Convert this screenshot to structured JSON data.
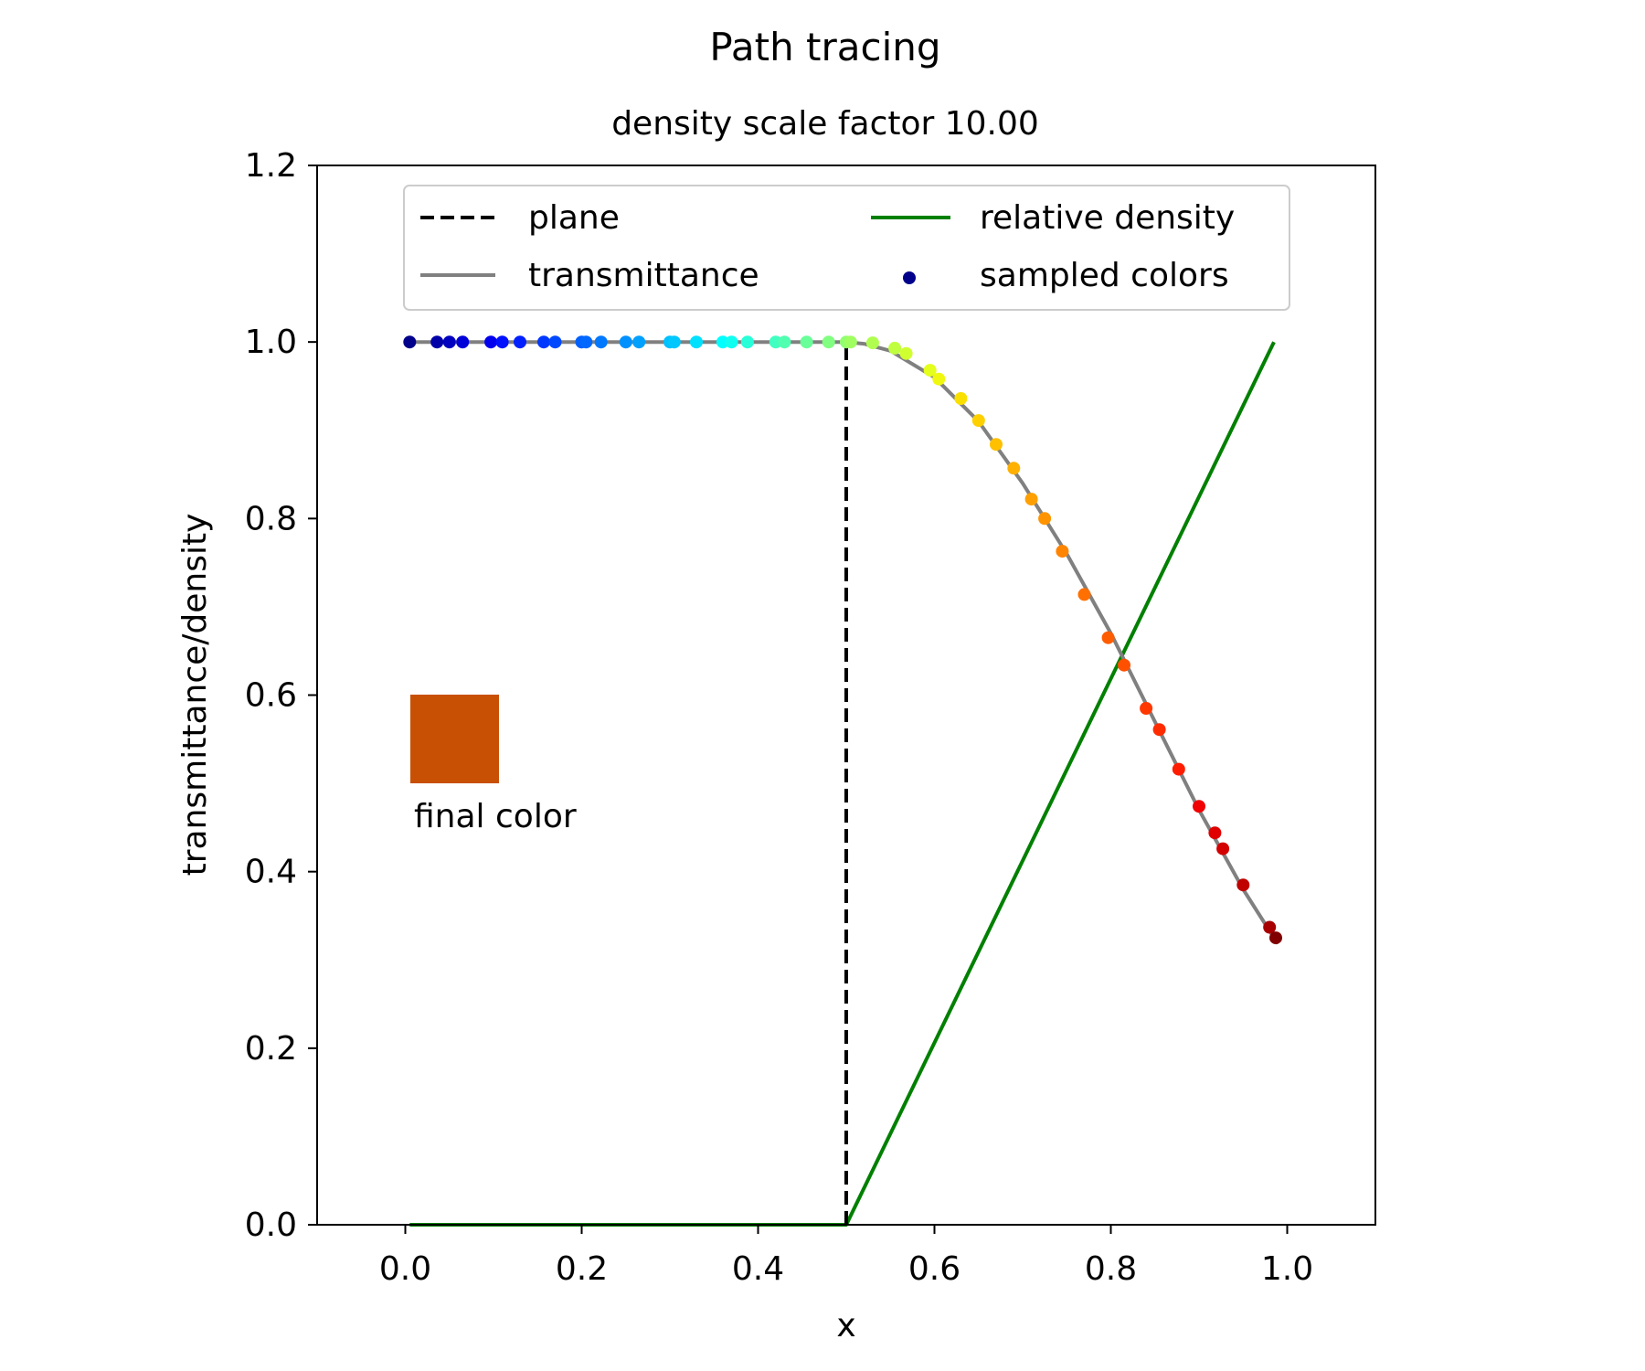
{
  "chart_data": {
    "type": "line",
    "title": "Path tracing",
    "subtitle": "density scale factor 10.00",
    "xlabel": "x",
    "ylabel": "transmittance/density",
    "xlim": [
      -0.1,
      1.1
    ],
    "ylim": [
      0.0,
      1.2
    ],
    "xticks": [
      0.0,
      0.2,
      0.4,
      0.6,
      0.8,
      1.0
    ],
    "xtick_labels": [
      "0.0",
      "0.2",
      "0.4",
      "0.6",
      "0.8",
      "1.0"
    ],
    "yticks": [
      0.0,
      0.2,
      0.4,
      0.6,
      0.8,
      1.0,
      1.2
    ],
    "ytick_labels": [
      "0.0",
      "0.2",
      "0.4",
      "0.6",
      "0.8",
      "1.0",
      "1.2"
    ],
    "grid": false,
    "legend": {
      "placement": "top-center",
      "columns": 2,
      "entries": [
        "plane",
        "transmittance",
        "relative density",
        "sampled colors"
      ]
    },
    "series": [
      {
        "name": "plane",
        "style": "dashed",
        "color": "#000000",
        "x": [
          0.5,
          0.5
        ],
        "y": [
          0.0,
          1.0
        ]
      },
      {
        "name": "transmittance",
        "style": "solid",
        "color": "#808080",
        "x": [
          0.005,
          0.5,
          0.52,
          0.55,
          0.6,
          0.65,
          0.7,
          0.75,
          0.8,
          0.85,
          0.9,
          0.95,
          0.985
        ],
        "y": [
          1.0,
          1.0,
          0.998,
          0.99,
          0.96,
          0.91,
          0.84,
          0.76,
          0.67,
          0.57,
          0.47,
          0.38,
          0.325
        ]
      },
      {
        "name": "relative density",
        "style": "solid",
        "color": "#008000",
        "x": [
          0.005,
          0.5,
          0.985
        ],
        "y": [
          0.0,
          0.0,
          1.0
        ]
      },
      {
        "name": "sampled colors",
        "style": "points",
        "color": "#00008b",
        "x": [
          0.005,
          0.036,
          0.05,
          0.065,
          0.097,
          0.11,
          0.13,
          0.157,
          0.17,
          0.2,
          0.205,
          0.222,
          0.25,
          0.265,
          0.3,
          0.305,
          0.33,
          0.36,
          0.37,
          0.388,
          0.42,
          0.43,
          0.455,
          0.48,
          0.5,
          0.505,
          0.53,
          0.555,
          0.568,
          0.595,
          0.605,
          0.63,
          0.65,
          0.67,
          0.69,
          0.71,
          0.725,
          0.745,
          0.77,
          0.797,
          0.815,
          0.84,
          0.855,
          0.877,
          0.9,
          0.918,
          0.927,
          0.95,
          0.98,
          0.987
        ],
        "y": [
          1.0,
          1.0,
          1.0,
          1.0,
          1.0,
          1.0,
          1.0,
          1.0,
          1.0,
          1.0,
          1.0,
          1.0,
          1.0,
          1.0,
          1.0,
          1.0,
          1.0,
          1.0,
          1.0,
          1.0,
          1.0,
          1.0,
          1.0,
          1.0,
          1.0,
          1.0,
          0.999,
          0.993,
          0.987,
          0.968,
          0.958,
          0.936,
          0.911,
          0.884,
          0.857,
          0.822,
          0.8,
          0.763,
          0.714,
          0.665,
          0.634,
          0.585,
          0.561,
          0.516,
          0.474,
          0.444,
          0.426,
          0.385,
          0.337,
          0.325
        ],
        "colors": [
          "#00008b",
          "#0000a8",
          "#0000c0",
          "#0000d8",
          "#0000ee",
          "#0010ff",
          "#0020ff",
          "#0038ff",
          "#0048ff",
          "#0060ff",
          "#0068ff",
          "#0078ff",
          "#0090ff",
          "#00a0ff",
          "#00c0ff",
          "#00c8ff",
          "#00e0ff",
          "#00ffff",
          "#10fff0",
          "#28ffd8",
          "#40ffc0",
          "#50ffb0",
          "#68ff98",
          "#80ff80",
          "#90ff70",
          "#a0ff60",
          "#b0ff50",
          "#c0ff40",
          "#d0ff30",
          "#e4ff1c",
          "#f0f810",
          "#fae000",
          "#ffd000",
          "#ffc000",
          "#ffb000",
          "#ffa000",
          "#ff9400",
          "#ff8400",
          "#ff7000",
          "#ff5c00",
          "#ff5000",
          "#ff3800",
          "#ff2c00",
          "#ff1c00",
          "#f00000",
          "#e00000",
          "#d40000",
          "#c00000",
          "#a80000",
          "#800000"
        ]
      }
    ],
    "annotations": [
      {
        "text": "final color",
        "swatch_color": "#c85005"
      }
    ]
  }
}
